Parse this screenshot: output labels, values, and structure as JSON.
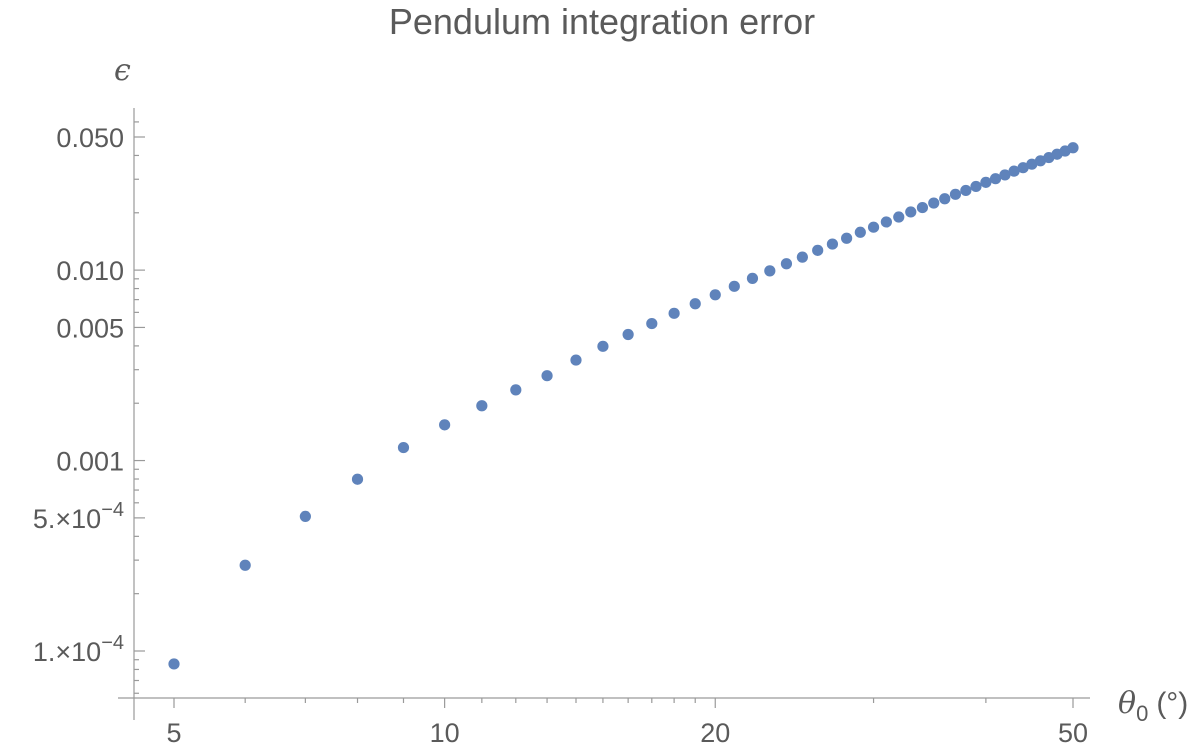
{
  "chart_data": {
    "type": "scatter",
    "title": "Pendulum integration error",
    "xlabel": "θ",
    "xlabel_sub": "0",
    "xlabel_unit": "(°)",
    "ylabel": "ϵ",
    "x_scale": "log",
    "y_scale": "log",
    "xlim": [
      4.5,
      52
    ],
    "ylim": [
      5e-05,
      0.065
    ],
    "x_ticks": [
      {
        "value": 5,
        "label": "5"
      },
      {
        "value": 10,
        "label": "10"
      },
      {
        "value": 20,
        "label": "20"
      },
      {
        "value": 50,
        "label": "50"
      }
    ],
    "y_ticks": [
      {
        "value": 0.0001,
        "label": "1.×10",
        "exp": "−4"
      },
      {
        "value": 0.0005,
        "label": "5.×10",
        "exp": "−4"
      },
      {
        "value": 0.001,
        "label": "0.001"
      },
      {
        "value": 0.005,
        "label": "0.005"
      },
      {
        "value": 0.01,
        "label": "0.010"
      },
      {
        "value": 0.05,
        "label": "0.050"
      }
    ],
    "color": "#5f83bb",
    "grid": false,
    "series": [
      {
        "x": [
          5,
          6,
          7,
          8,
          9,
          10,
          11,
          12,
          13,
          14,
          15,
          16,
          17,
          18,
          19,
          20,
          21,
          22,
          23,
          24,
          25,
          26,
          27,
          28,
          29,
          30,
          31,
          32,
          33,
          34,
          35,
          36,
          37,
          38,
          39,
          40,
          41,
          42,
          43,
          44,
          45,
          46,
          47,
          48,
          49,
          50
        ],
        "y": [
          8.55e-05,
          0.000282,
          0.000509,
          0.000798,
          0.00117,
          0.00154,
          0.00194,
          0.00235,
          0.00279,
          0.00337,
          0.00398,
          0.00459,
          0.00524,
          0.00593,
          0.00666,
          0.00742,
          0.00822,
          0.00905,
          0.00991,
          0.0108,
          0.0117,
          0.0127,
          0.0137,
          0.0147,
          0.0158,
          0.0168,
          0.0179,
          0.019,
          0.0202,
          0.0213,
          0.0225,
          0.0237,
          0.025,
          0.0262,
          0.0275,
          0.0289,
          0.0302,
          0.0316,
          0.0331,
          0.0345,
          0.036,
          0.0375,
          0.039,
          0.0406,
          0.0422,
          0.0439
        ]
      }
    ]
  }
}
